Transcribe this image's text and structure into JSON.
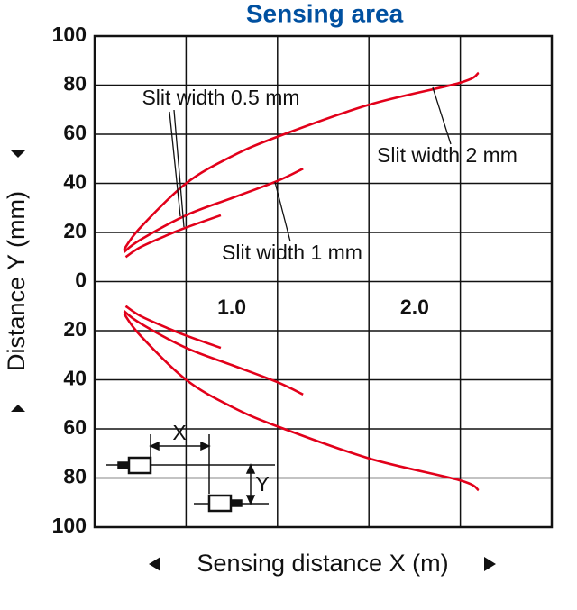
{
  "chart_data": {
    "type": "line",
    "title": "Sensing area",
    "x_label": "Sensing distance X (m)",
    "y_label": "Distance Y (mm)",
    "xlim": [
      0,
      2.5
    ],
    "xticks": [
      {
        "value": 1,
        "label": "1.0"
      },
      {
        "value": 2,
        "label": "2.0"
      }
    ],
    "xgrid": [
      0.5,
      1,
      1.5,
      2
    ],
    "ylim": [
      -100,
      100
    ],
    "yticks": [
      100,
      80,
      60,
      40,
      20,
      0,
      {
        "value": -20,
        "label": "20"
      },
      {
        "value": -40,
        "label": "40"
      },
      {
        "value": -60,
        "label": "60"
      },
      {
        "value": -80,
        "label": "80"
      },
      {
        "value": -100,
        "label": "100"
      }
    ],
    "grid": true,
    "series": [
      {
        "name": "Slit width 2 mm",
        "color": "#e2001a",
        "x": [
          0.16,
          0.25,
          0.5,
          0.75,
          1,
          1.5,
          2,
          2.1
        ],
        "values": [
          13,
          22,
          40,
          51,
          59,
          72,
          81,
          85
        ],
        "values_below": [
          -13,
          -22,
          -40,
          -51,
          -59,
          -72,
          -81,
          -85
        ]
      },
      {
        "name": "Slit width 1 mm",
        "color": "#e2001a",
        "x": [
          0.16,
          0.25,
          0.5,
          0.75,
          1,
          1.14
        ],
        "values": [
          12,
          17,
          27,
          34,
          41,
          46
        ],
        "values_below": [
          -12,
          -17,
          -27,
          -34,
          -41,
          -46
        ]
      },
      {
        "name": "Slit width 0.5 mm",
        "color": "#e2001a",
        "x": [
          0.17,
          0.25,
          0.4,
          0.5,
          0.69
        ],
        "values": [
          10,
          14,
          19,
          22,
          27
        ],
        "values_below": [
          -10,
          -14,
          -19,
          -22,
          -27
        ]
      }
    ],
    "inset": {
      "x_label": "X",
      "y_label": "Y"
    }
  }
}
